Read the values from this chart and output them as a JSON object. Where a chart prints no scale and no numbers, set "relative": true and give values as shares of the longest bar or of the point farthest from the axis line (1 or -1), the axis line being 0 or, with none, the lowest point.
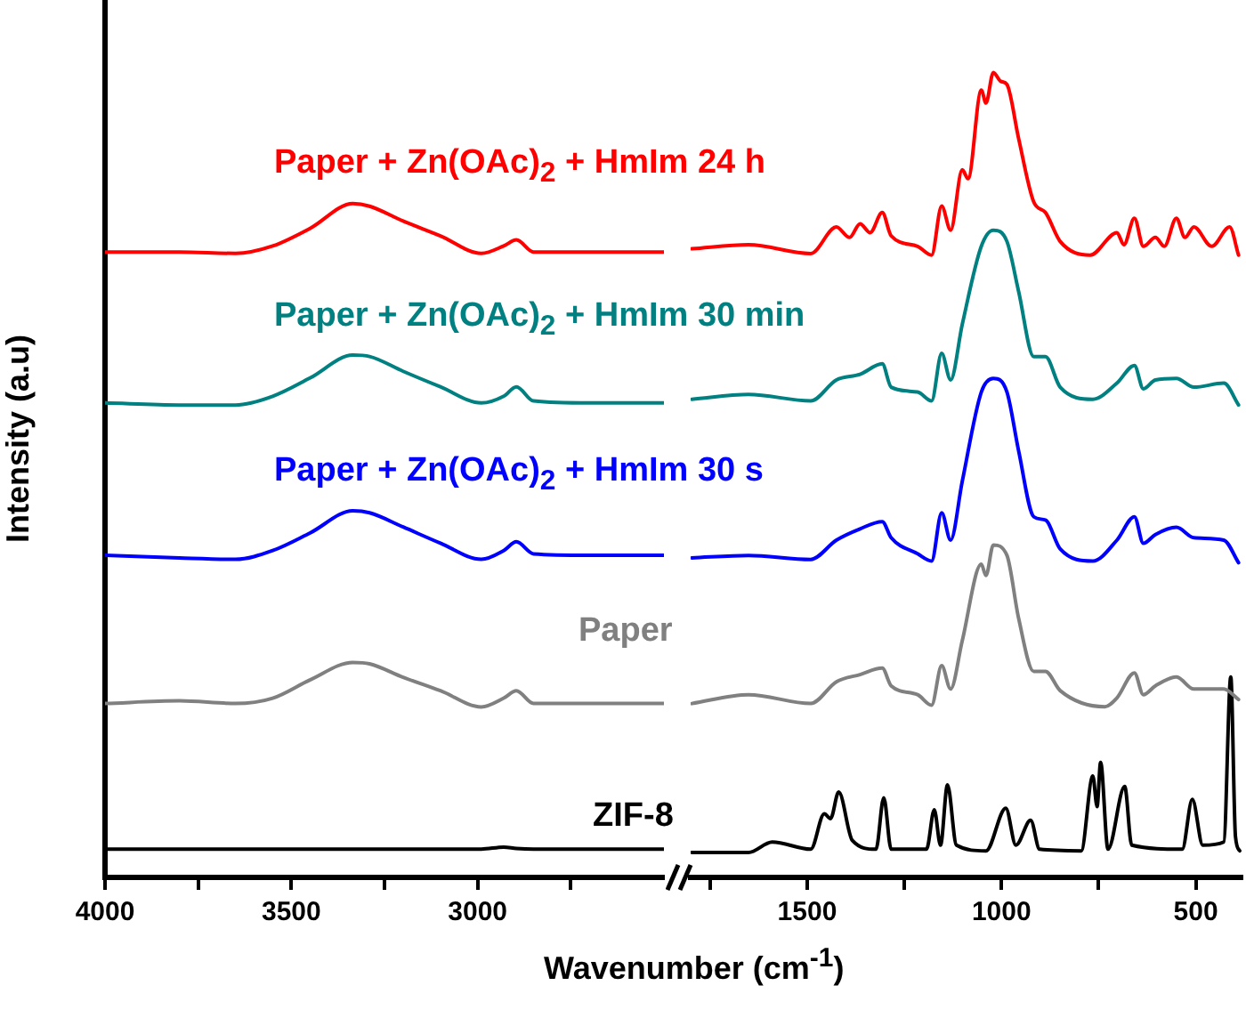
{
  "chart_data": [
    {
      "type": "line",
      "relative": true,
      "xlabel": "Wavenumber (cm$^{-1}$)",
      "ylabel": "Intensity (a.u)",
      "xlim": [
        4000,
        2500
      ],
      "xticks": [
        4000,
        {
          "value": 3750,
          "label": null
        },
        3500,
        {
          "value": 3250,
          "label": null
        },
        3000,
        {
          "value": 2750,
          "label": null
        }
      ],
      "marker": "none",
      "series": [
        {
          "name": "Paper + Zn(OAc)$_{2}$ + HmIm 24 h",
          "color": "#ff0000",
          "x": [
            4000,
            3800,
            3650,
            3550,
            3450,
            3335,
            3290,
            3200,
            3100,
            2990,
            2930,
            2896,
            2850,
            2700,
            2500
          ],
          "values": [
            0.928,
            0.928,
            0.926,
            0.937,
            0.963,
            1,
            0.996,
            0.974,
            0.952,
            0.926,
            0.937,
            0.946,
            0.928,
            0.928,
            0.928
          ]
        },
        {
          "name": "Paper + Zn(OAc)$_{2}$ + HmIm 30 min",
          "color": "#008080",
          "x": [
            4000,
            3800,
            3650,
            3550,
            3450,
            3335,
            3290,
            3200,
            3100,
            2990,
            2930,
            2896,
            2850,
            2700,
            2500
          ],
          "values": [
            0.704,
            0.701,
            0.701,
            0.714,
            0.741,
            0.775,
            0.773,
            0.751,
            0.728,
            0.704,
            0.714,
            0.728,
            0.707,
            0.704,
            0.704
          ]
        },
        {
          "name": "Paper + Zn(OAc)$_{2}$ + HmIm 30 s",
          "color": "#0000ff",
          "x": [
            4000,
            3800,
            3650,
            3550,
            3450,
            3335,
            3290,
            3200,
            3100,
            2990,
            2930,
            2896,
            2850,
            2700,
            2500
          ],
          "values": [
            0.478,
            0.474,
            0.472,
            0.485,
            0.511,
            0.544,
            0.541,
            0.52,
            0.496,
            0.472,
            0.485,
            0.498,
            0.48,
            0.478,
            0.478
          ]
        },
        {
          "name": "Paper",
          "color": "#808080",
          "x": [
            4000,
            3800,
            3650,
            3550,
            3450,
            3335,
            3290,
            3200,
            3100,
            2990,
            2930,
            2896,
            2850,
            2700,
            2500
          ],
          "values": [
            0.258,
            0.262,
            0.258,
            0.266,
            0.293,
            0.319,
            0.317,
            0.297,
            0.277,
            0.253,
            0.266,
            0.277,
            0.258,
            0.258,
            0.258
          ]
        },
        {
          "name": "ZIF-8",
          "color": "#000000",
          "x": [
            4000,
            3800,
            3650,
            3550,
            3450,
            3335,
            3290,
            3200,
            3100,
            2990,
            2930,
            2896,
            2850,
            2700,
            2500
          ],
          "values": [
            0.042,
            0.042,
            0.042,
            0.042,
            0.042,
            0.042,
            0.042,
            0.042,
            0.042,
            0.042,
            0.045,
            0.043,
            0.042,
            0.042,
            0.042
          ]
        }
      ]
    },
    {
      "type": "line",
      "relative": true,
      "xlim": [
        1800,
        380
      ],
      "xticks": [
        {
          "value": 1750,
          "label": null
        },
        1500,
        {
          "value": 1250,
          "label": null
        },
        1000,
        {
          "value": 750,
          "label": null
        },
        500
      ],
      "marker": "none",
      "series": [
        {
          "color": "#ff0000",
          "x": [
            1797,
            1651,
            1491,
            1425,
            1391,
            1364,
            1338,
            1307,
            1284,
            1216,
            1180,
            1154,
            1131,
            1101,
            1086,
            1052,
            1040,
            1021,
            1002,
            986,
            956,
            917,
            887,
            849,
            772,
            703,
            685,
            658,
            635,
            604,
            581,
            550,
            528,
            505,
            459,
            413,
            390
          ],
          "values": [
            0.781,
            0.786,
            0.775,
            0.808,
            0.795,
            0.812,
            0.801,
            0.826,
            0.797,
            0.784,
            0.773,
            0.834,
            0.804,
            0.879,
            0.868,
            0.978,
            0.962,
            1.0,
            0.989,
            0.985,
            0.918,
            0.839,
            0.826,
            0.79,
            0.773,
            0.801,
            0.786,
            0.819,
            0.784,
            0.795,
            0.784,
            0.819,
            0.795,
            0.808,
            0.784,
            0.808,
            0.773
          ]
        },
        {
          "color": "#008080",
          "x": [
            1797,
            1651,
            1491,
            1425,
            1364,
            1307,
            1284,
            1216,
            1180,
            1154,
            1131,
            1101,
            1052,
            1021,
            986,
            956,
            917,
            887,
            849,
            765,
            703,
            658,
            635,
            604,
            550,
            505,
            428,
            390
          ],
          "values": [
            0.594,
            0.6,
            0.592,
            0.618,
            0.625,
            0.638,
            0.609,
            0.603,
            0.592,
            0.651,
            0.618,
            0.687,
            0.784,
            0.804,
            0.79,
            0.728,
            0.647,
            0.647,
            0.609,
            0.594,
            0.614,
            0.636,
            0.607,
            0.618,
            0.62,
            0.609,
            0.614,
            0.587
          ]
        },
        {
          "color": "#0000ff",
          "x": [
            1797,
            1651,
            1491,
            1425,
            1364,
            1307,
            1284,
            1216,
            1180,
            1154,
            1131,
            1101,
            1052,
            1021,
            986,
            956,
            917,
            887,
            849,
            765,
            703,
            658,
            635,
            604,
            550,
            505,
            428,
            390
          ],
          "values": [
            0.397,
            0.4,
            0.395,
            0.419,
            0.433,
            0.442,
            0.422,
            0.402,
            0.393,
            0.453,
            0.419,
            0.492,
            0.603,
            0.62,
            0.603,
            0.53,
            0.448,
            0.444,
            0.408,
            0.393,
            0.419,
            0.448,
            0.415,
            0.426,
            0.435,
            0.422,
            0.419,
            0.391
          ]
        },
        {
          "color": "#808080",
          "x": [
            1797,
            1651,
            1491,
            1425,
            1364,
            1307,
            1284,
            1216,
            1180,
            1154,
            1131,
            1101,
            1052,
            1040,
            1021,
            986,
            956,
            917,
            887,
            849,
            734,
            703,
            658,
            635,
            604,
            550,
            505,
            428,
            390
          ],
          "values": [
            0.216,
            0.227,
            0.216,
            0.243,
            0.252,
            0.26,
            0.238,
            0.227,
            0.214,
            0.263,
            0.234,
            0.294,
            0.389,
            0.375,
            0.413,
            0.4,
            0.322,
            0.256,
            0.256,
            0.232,
            0.212,
            0.223,
            0.254,
            0.227,
            0.238,
            0.249,
            0.234,
            0.234,
            0.221
          ]
        },
        {
          "color": "#000000",
          "x": [
            1797,
            1651,
            1590,
            1491,
            1456,
            1440,
            1419,
            1384,
            1323,
            1303,
            1284,
            1193,
            1173,
            1157,
            1139,
            1116,
            1040,
            989,
            963,
            925,
            902,
            795,
            765,
            754,
            745,
            726,
            683,
            665,
            535,
            509,
            482,
            428,
            410,
            398,
            387
          ],
          "values": [
            0.031,
            0.031,
            0.044,
            0.035,
            0.079,
            0.073,
            0.106,
            0.046,
            0.035,
            0.099,
            0.035,
            0.035,
            0.084,
            0.04,
            0.115,
            0.04,
            0.033,
            0.086,
            0.04,
            0.071,
            0.035,
            0.033,
            0.126,
            0.088,
            0.143,
            0.035,
            0.113,
            0.04,
            0.035,
            0.097,
            0.04,
            0.044,
            0.249,
            0.051,
            0.033
          ]
        }
      ]
    }
  ]
}
